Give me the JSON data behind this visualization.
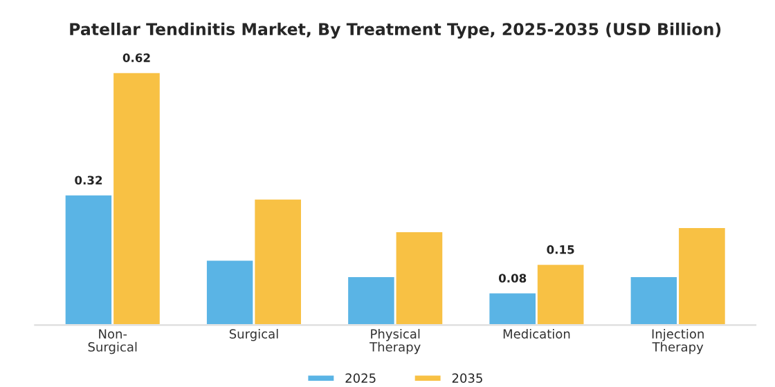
{
  "chart_data": {
    "type": "bar",
    "title": "Patellar Tendinitis Market, By Treatment Type, 2025-2035 (USD Billion)",
    "categories": [
      "Non-\nSurgical",
      "Surgical",
      "Physical\nTherapy",
      "Medication",
      "Injection\nTherapy"
    ],
    "series": [
      {
        "name": "2025",
        "color": "#5ab4e5",
        "values": [
          0.32,
          0.16,
          0.12,
          0.08,
          0.12
        ],
        "value_labels": [
          "0.32",
          null,
          null,
          "0.08",
          null
        ]
      },
      {
        "name": "2035",
        "color": "#f8c144",
        "values": [
          0.62,
          0.31,
          0.23,
          0.15,
          0.24
        ],
        "value_labels": [
          "0.62",
          null,
          null,
          "0.15",
          null
        ]
      }
    ],
    "legend": "bottom",
    "grid": false
  }
}
